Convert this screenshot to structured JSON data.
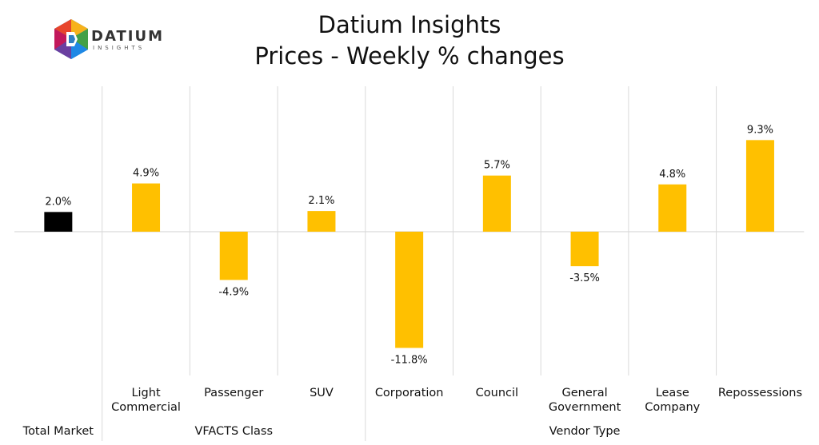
{
  "logo": {
    "name": "DATIUM",
    "tagline": "INSIGHTS"
  },
  "title_line1": "Datium Insights",
  "title_line2": "Prices - Weekly % changes",
  "chart_data": {
    "type": "bar",
    "title": "Datium Insights Prices - Weekly % changes",
    "categories": [
      [
        "Total Market"
      ],
      [
        "Light",
        "Commercial"
      ],
      [
        "Passenger"
      ],
      [
        "SUV"
      ],
      [
        "Corporation"
      ],
      [
        "Council"
      ],
      [
        "General",
        "Government"
      ],
      [
        "Lease",
        "Company"
      ],
      [
        "Repossessions"
      ]
    ],
    "values": [
      2.0,
      4.9,
      -4.9,
      2.1,
      -11.8,
      5.7,
      -3.5,
      4.8,
      9.3
    ],
    "value_labels": [
      "2.0%",
      "4.9%",
      "-4.9%",
      "2.1%",
      "-11.8%",
      "5.7%",
      "-3.5%",
      "4.8%",
      "9.3%"
    ],
    "colors": [
      "#000000",
      "#FFC000",
      "#FFC000",
      "#FFC000",
      "#FFC000",
      "#FFC000",
      "#FFC000",
      "#FFC000",
      "#FFC000"
    ],
    "groups": [
      {
        "label": "Total Market",
        "span": [
          0,
          0
        ]
      },
      {
        "label": "VFACTS Class",
        "span": [
          1,
          3
        ]
      },
      {
        "label": "Vendor Type",
        "span": [
          4,
          8
        ]
      }
    ],
    "ylim": [
      -14.6,
      14.6
    ],
    "grid": "vertical-separators",
    "legend": "none"
  }
}
